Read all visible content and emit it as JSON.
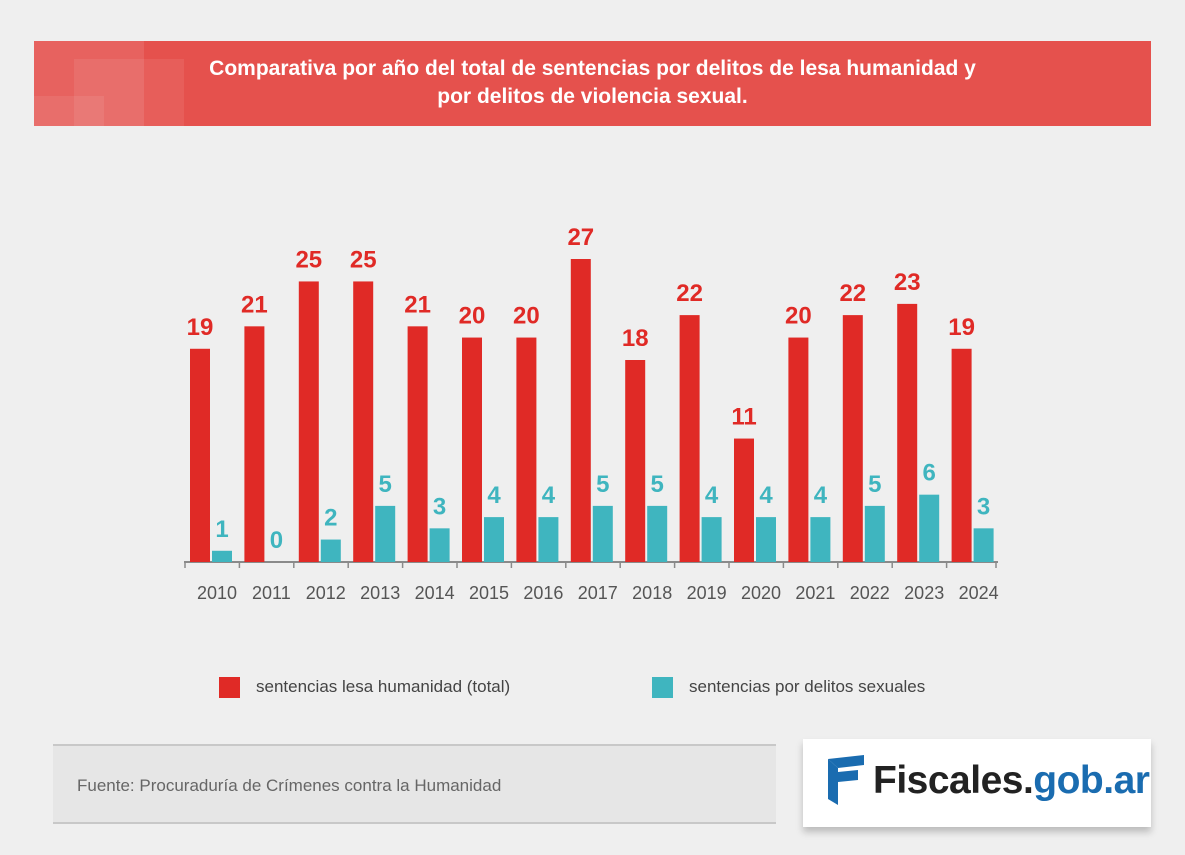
{
  "title_lines": [
    "Comparativa por año del total de sentencias por delitos de lesa humanidad y",
    "por delitos de violencia sexual."
  ],
  "chart_data": {
    "type": "bar",
    "categories": [
      "2010",
      "2011",
      "2012",
      "2013",
      "2014",
      "2015",
      "2016",
      "2017",
      "2018",
      "2019",
      "2020",
      "2021",
      "2022",
      "2023",
      "2024"
    ],
    "series": [
      {
        "name": "sentencias lesa humanidad (total)",
        "color": "#e02a26",
        "values": [
          19,
          21,
          25,
          25,
          21,
          20,
          20,
          27,
          18,
          22,
          11,
          20,
          22,
          23,
          19
        ]
      },
      {
        "name": "sentencias por delitos sexuales",
        "color": "#3fb5bf",
        "values": [
          1,
          0,
          2,
          5,
          3,
          4,
          4,
          5,
          5,
          4,
          4,
          4,
          5,
          6,
          3
        ]
      }
    ],
    "ylim": [
      0,
      27
    ],
    "legend_position": "bottom",
    "grid": false
  },
  "legend": [
    {
      "label": "sentencias lesa humanidad (total)",
      "color": "#e02a26"
    },
    {
      "label": "sentencias por delitos sexuales",
      "color": "#3fb5bf"
    }
  ],
  "source": "Fuente: Procuraduría de Crímenes contra la Humanidad",
  "logo": {
    "part1": "Fiscales.",
    "part2": "gob.ar",
    "icon": "fiscales-logo-icon"
  }
}
